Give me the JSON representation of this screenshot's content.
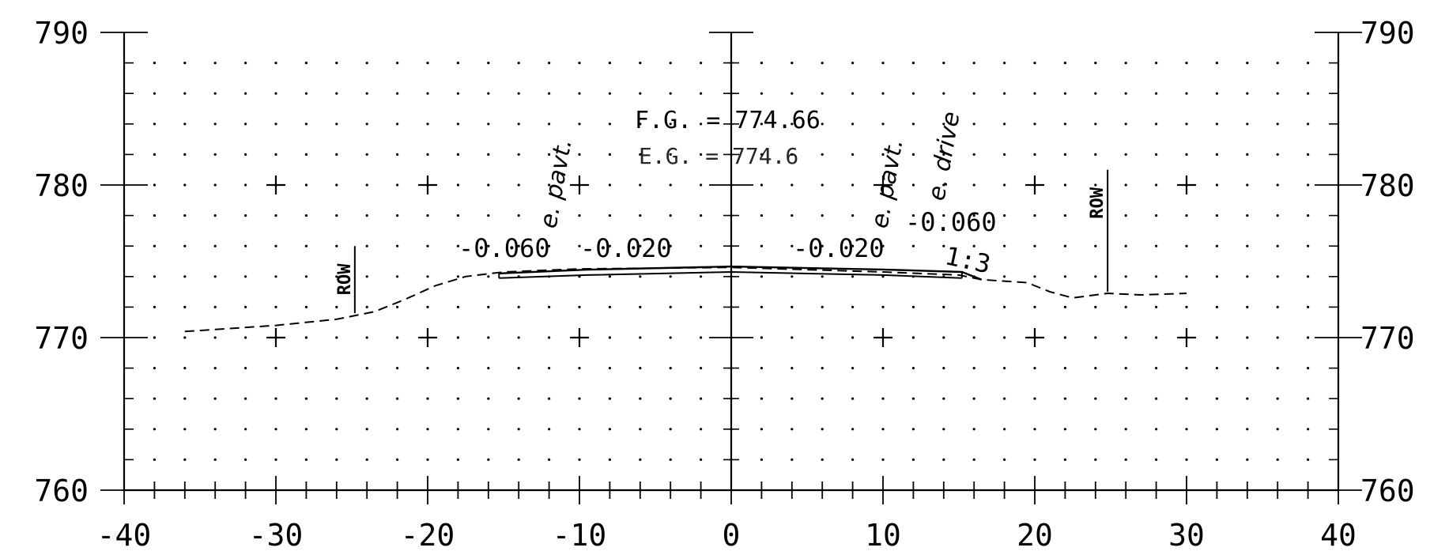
{
  "chart_data": {
    "type": "line",
    "xlim": [
      -40,
      40
    ],
    "ylim": [
      760,
      790
    ],
    "x_ticks": [
      -40,
      -30,
      -20,
      -10,
      0,
      10,
      20,
      30,
      40
    ],
    "x_tick_labels": [
      "-40",
      "-30",
      "-20",
      "-10",
      "0",
      "10",
      "20",
      "30",
      "40"
    ],
    "y_ticks": [
      760,
      770,
      780,
      790
    ],
    "y_tick_labels": [
      "760",
      "770",
      "780",
      "790"
    ],
    "grid": "dots",
    "existing_ground": [
      [
        -36,
        770.4
      ],
      [
        -30,
        770.8
      ],
      [
        -26,
        771.2
      ],
      [
        -23.5,
        771.7
      ],
      [
        -21.5,
        772.5
      ],
      [
        -19.5,
        773.4
      ],
      [
        -17.5,
        774.0
      ],
      [
        -15,
        774.3
      ],
      [
        -10,
        774.5
      ],
      [
        -5,
        774.55
      ],
      [
        0,
        774.6
      ],
      [
        5,
        774.45
      ],
      [
        10,
        774.3
      ],
      [
        15,
        774.1
      ],
      [
        16.5,
        773.8
      ],
      [
        19.5,
        773.6
      ],
      [
        21,
        773.0
      ],
      [
        22.5,
        772.6
      ],
      [
        24.8,
        772.9
      ],
      [
        27,
        772.8
      ],
      [
        30,
        772.9
      ]
    ],
    "finished_grade": [
      [
        -15.3,
        774.2
      ],
      [
        -9.5,
        774.45
      ],
      [
        0,
        774.66
      ],
      [
        10,
        774.46
      ],
      [
        15.2,
        774.3
      ],
      [
        16.5,
        773.8
      ]
    ],
    "pavement_bottom": [
      [
        -15.3,
        773.9
      ],
      [
        -9.5,
        774.1
      ],
      [
        0,
        774.3
      ],
      [
        10,
        774.1
      ],
      [
        15.2,
        773.9
      ]
    ],
    "row_lines": [
      {
        "label": "ROW",
        "x": -24.8,
        "y_bottom": 771.6,
        "y_top": 776.0
      },
      {
        "label": "ROW",
        "x": 24.8,
        "y_bottom": 773.0,
        "y_top": 781.0
      }
    ],
    "plus_markers": [
      [
        -30,
        780
      ],
      [
        -20,
        780
      ],
      [
        -10,
        780
      ],
      [
        0,
        780
      ],
      [
        10,
        780
      ],
      [
        20,
        780
      ],
      [
        30,
        780
      ],
      [
        -30,
        770
      ],
      [
        -20,
        770
      ],
      [
        -10,
        770
      ],
      [
        0,
        770
      ],
      [
        10,
        770
      ],
      [
        20,
        770
      ],
      [
        30,
        770
      ]
    ],
    "annotations": {
      "fg": "F.G.  = 774.66",
      "eg": "E.G.  = 774.6",
      "slope_l1": "-0.060",
      "slope_l2": "-0.020",
      "slope_r1": "-0.020",
      "slope_r2": "-0.060",
      "side_slope": "1:3",
      "epavt_left": "e. pavt.",
      "epavt_right": "e. pavt.",
      "edrive": "e. drive"
    }
  }
}
